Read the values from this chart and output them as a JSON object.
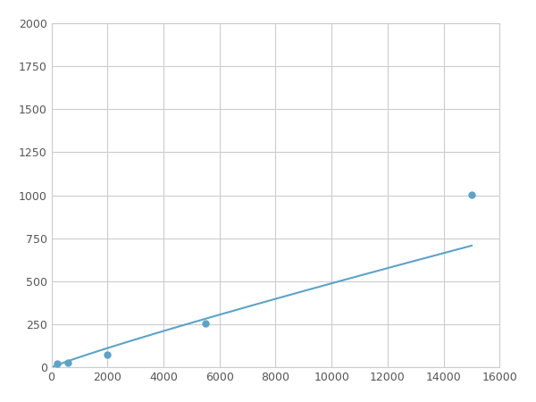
{
  "x": [
    200,
    600,
    2000,
    5500,
    15000
  ],
  "y": [
    20,
    30,
    75,
    255,
    1005
  ],
  "line_color": "#5ba3c9",
  "marker_color": "#5ba3c9",
  "marker_size": 5,
  "line_width": 1.5,
  "xlim": [
    0,
    16000
  ],
  "ylim": [
    0,
    2000
  ],
  "xticks": [
    0,
    2000,
    4000,
    6000,
    8000,
    10000,
    12000,
    14000,
    16000
  ],
  "yticks": [
    0,
    250,
    500,
    750,
    1000,
    1250,
    1500,
    1750,
    2000
  ],
  "grid_color": "#cccccc",
  "background_color": "#ffffff",
  "fig_background": "#ffffff"
}
